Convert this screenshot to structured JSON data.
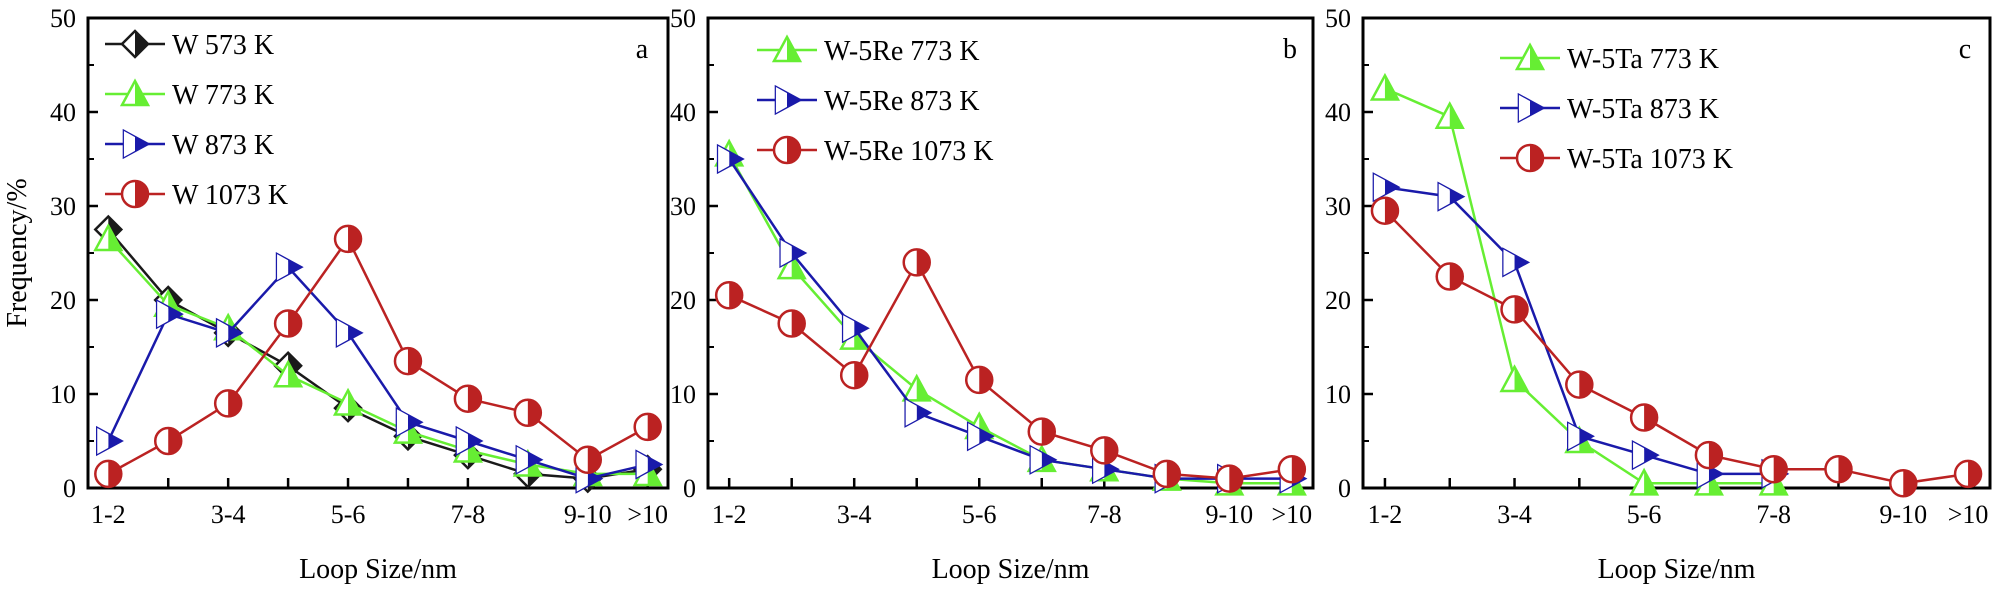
{
  "chart_data": [
    {
      "type": "line",
      "panel_label": "a",
      "ylabel": "Frequency/%",
      "xlabel": "Loop Size/nm",
      "ylim": [
        0,
        50
      ],
      "yticks": [
        0,
        10,
        20,
        30,
        40,
        50
      ],
      "categories": [
        "1-2",
        "2-3",
        "3-4",
        "4-5",
        "5-6",
        "6-7",
        "7-8",
        "8-9",
        "9-10",
        ">10"
      ],
      "tick_labels": [
        "1-2",
        "3-4",
        "5-6",
        "7-8",
        "9-10",
        ">10"
      ],
      "legend": "top-left",
      "series": [
        {
          "name": "W 573 K",
          "color": "#1a1a1a",
          "marker": "diamond",
          "values": [
            27.5,
            20,
            16.5,
            13,
            8.5,
            5.5,
            3.5,
            1.5,
            1,
            2
          ]
        },
        {
          "name": "W 773 K",
          "color": "#66ee33",
          "marker": "triangle-up",
          "values": [
            26.5,
            19.5,
            17,
            12,
            9,
            6,
            4,
            2.5,
            1.5,
            1.5
          ]
        },
        {
          "name": "W 873 K",
          "color": "#1a1aaa",
          "marker": "triangle-right",
          "values": [
            5,
            18.5,
            16.5,
            23.5,
            16.5,
            7,
            5,
            3,
            1,
            2.5
          ]
        },
        {
          "name": "W 1073 K",
          "color": "#bb2222",
          "marker": "circle",
          "values": [
            1.5,
            5,
            9,
            17.5,
            26.5,
            13.5,
            9.5,
            8,
            3,
            6.5
          ]
        }
      ]
    },
    {
      "type": "line",
      "panel_label": "b",
      "ylabel": "",
      "xlabel": "Loop Size/nm",
      "ylim": [
        0,
        50
      ],
      "yticks": [
        0,
        10,
        20,
        30,
        40,
        50
      ],
      "categories": [
        "1-2",
        "2-3",
        "3-4",
        "4-5",
        "5-6",
        "6-7",
        "7-8",
        "8-9",
        "9-10",
        ">10"
      ],
      "tick_labels": [
        "1-2",
        "3-4",
        "5-6",
        "7-8",
        "9-10",
        ">10"
      ],
      "legend": "top-left",
      "series": [
        {
          "name": "W-5Re 773 K",
          "color": "#66ee33",
          "marker": "triangle-up",
          "values": [
            35.5,
            23.5,
            16,
            10.5,
            6.5,
            3,
            2,
            1,
            0.5,
            0.5
          ]
        },
        {
          "name": "W-5Re 873 K",
          "color": "#1a1aaa",
          "marker": "triangle-right",
          "values": [
            35,
            25,
            17,
            8,
            5.5,
            3,
            2,
            1,
            1,
            1
          ]
        },
        {
          "name": "W-5Re 1073 K",
          "color": "#bb2222",
          "marker": "circle",
          "values": [
            20.5,
            17.5,
            12,
            24,
            11.5,
            6,
            4,
            1.5,
            1,
            2
          ]
        }
      ]
    },
    {
      "type": "line",
      "panel_label": "c",
      "ylabel": "",
      "xlabel": "Loop Size/nm",
      "ylim": [
        0,
        50
      ],
      "yticks": [
        0,
        10,
        20,
        30,
        40,
        50
      ],
      "categories": [
        "1-2",
        "2-3",
        "3-4",
        "4-5",
        "5-6",
        "6-7",
        "7-8",
        "8-9",
        "9-10",
        ">10"
      ],
      "tick_labels": [
        "1-2",
        "3-4",
        "5-6",
        "7-8",
        "9-10",
        ">10"
      ],
      "legend": "top-left",
      "series": [
        {
          "name": "W-5Ta 773 K",
          "color": "#66ee33",
          "marker": "triangle-up",
          "values": [
            42.5,
            39.5,
            11.5,
            5,
            0.5,
            0.5,
            0.5,
            null,
            null,
            null
          ]
        },
        {
          "name": "W-5Ta 873 K",
          "color": "#1a1aaa",
          "marker": "triangle-right",
          "values": [
            32,
            31,
            24,
            5.5,
            3.5,
            1.5,
            1.5,
            null,
            null,
            null
          ]
        },
        {
          "name": "W-5Ta 1073 K",
          "color": "#bb2222",
          "marker": "circle",
          "values": [
            29.5,
            22.5,
            19,
            11,
            7.5,
            3.5,
            2,
            2,
            0.5,
            1.5
          ]
        }
      ]
    }
  ]
}
